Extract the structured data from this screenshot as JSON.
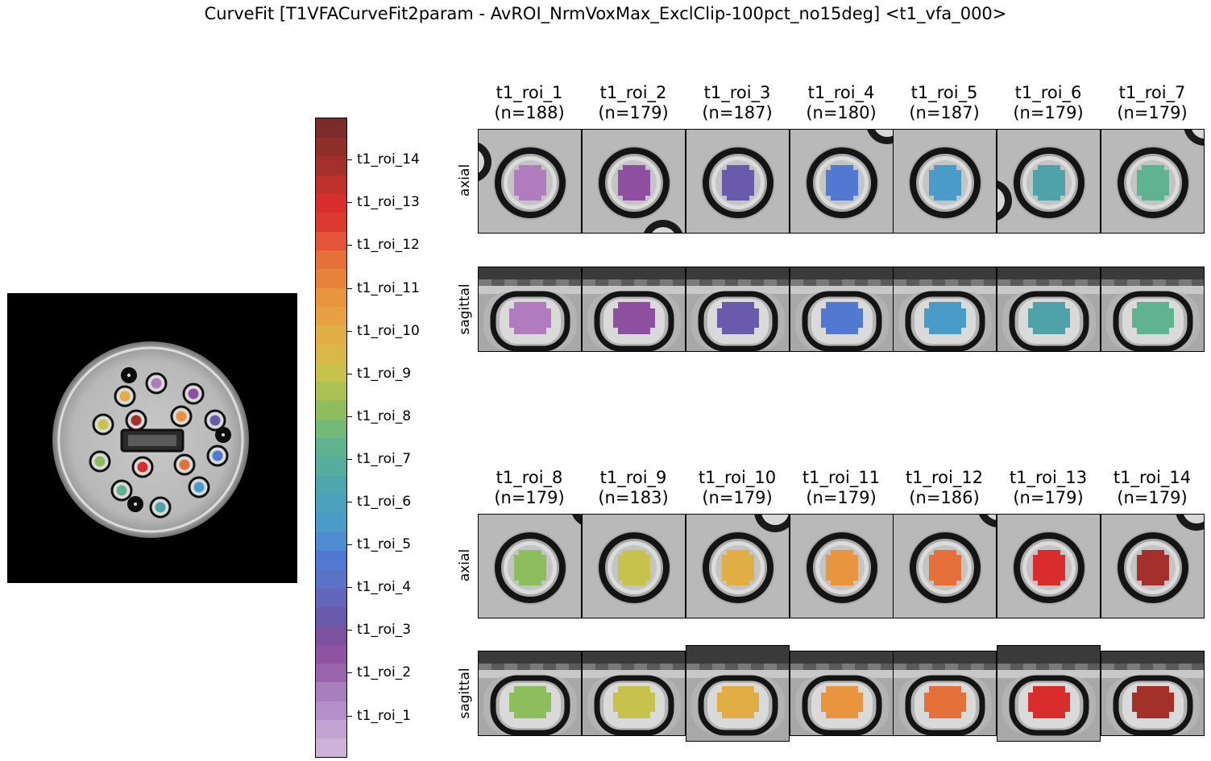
{
  "title": "CurveFit [T1VFACurveFit2param - AvROI_NrmVoxMax_ExclClip-100pct_no15deg] <t1_vfa_000>",
  "row_labels": {
    "axial": "axial",
    "sagittal": "sagittal"
  },
  "rois": [
    {
      "name": "t1_roi_1",
      "n": "(n=188)",
      "color": "#b07cbd"
    },
    {
      "name": "t1_roi_2",
      "n": "(n=179)",
      "color": "#8f4fa0"
    },
    {
      "name": "t1_roi_3",
      "n": "(n=187)",
      "color": "#6a5aab"
    },
    {
      "name": "t1_roi_4",
      "n": "(n=180)",
      "color": "#5279d1"
    },
    {
      "name": "t1_roi_5",
      "n": "(n=187)",
      "color": "#4b9bc8"
    },
    {
      "name": "t1_roi_6",
      "n": "(n=179)",
      "color": "#4fa3a8"
    },
    {
      "name": "t1_roi_7",
      "n": "(n=179)",
      "color": "#5fb38f"
    },
    {
      "name": "t1_roi_8",
      "n": "(n=179)",
      "color": "#8ebd5e"
    },
    {
      "name": "t1_roi_9",
      "n": "(n=183)",
      "color": "#c7c24c"
    },
    {
      "name": "t1_roi_10",
      "n": "(n=179)",
      "color": "#e1ae45"
    },
    {
      "name": "t1_roi_11",
      "n": "(n=179)",
      "color": "#e9953f"
    },
    {
      "name": "t1_roi_12",
      "n": "(n=186)",
      "color": "#e6703a"
    },
    {
      "name": "t1_roi_13",
      "n": "(n=179)",
      "color": "#d92c2c"
    },
    {
      "name": "t1_roi_14",
      "n": "(n=179)",
      "color": "#a3302b"
    }
  ],
  "colorbar": {
    "labels": [
      "t1_roi_1",
      "t1_roi_2",
      "t1_roi_3",
      "t1_roi_4",
      "t1_roi_5",
      "t1_roi_6",
      "t1_roi_7",
      "t1_roi_8",
      "t1_roi_9",
      "t1_roi_10",
      "t1_roi_11",
      "t1_roi_12",
      "t1_roi_13",
      "t1_roi_14"
    ],
    "colors": [
      "#cdb3da",
      "#c3a3d2",
      "#b58fc8",
      "#a87ebd",
      "#9a64ad",
      "#8f54a1",
      "#7c529f",
      "#6a5aab",
      "#6366ba",
      "#5a72c6",
      "#5279d1",
      "#4e8bcf",
      "#4b9bc8",
      "#4aa2bd",
      "#4fa6ad",
      "#56ad9d",
      "#5fb38f",
      "#75b979",
      "#8ebd5e",
      "#acc153",
      "#c7c24c",
      "#d9b847",
      "#e1ae45",
      "#e8a142",
      "#e9953f",
      "#e7823c",
      "#e6703a",
      "#e35538",
      "#dc3a30",
      "#d92c2c",
      "#bf322c",
      "#a3302b",
      "#8f2f2a",
      "#7c2c28"
    ]
  }
}
